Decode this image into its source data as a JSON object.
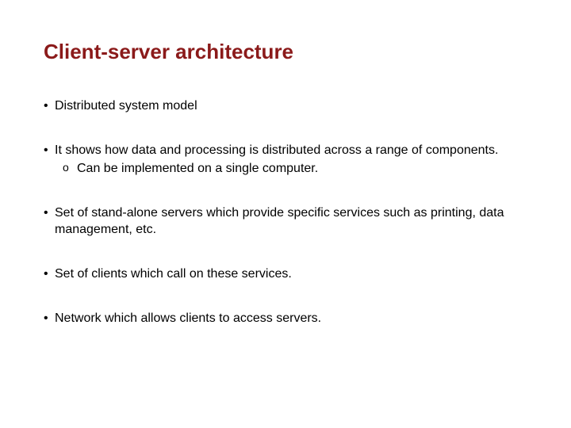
{
  "slide": {
    "title": "Client-server architecture",
    "title_color": "#8b1a1a",
    "title_fontsize": 26,
    "body_fontsize": 16,
    "text_color": "#000000",
    "background_color": "#ffffff",
    "bullets": [
      {
        "text": "Distributed system model",
        "sub": []
      },
      {
        "text": "It shows how data and processing is distributed across a range of components.",
        "sub": [
          "Can be implemented on a single computer."
        ]
      },
      {
        "text": "Set of stand-alone servers which provide specific services such as printing, data management, etc.",
        "sub": []
      },
      {
        "text": "Set of clients which call on these services.",
        "sub": []
      },
      {
        "text": "Network which allows clients to access servers.",
        "sub": []
      }
    ]
  }
}
